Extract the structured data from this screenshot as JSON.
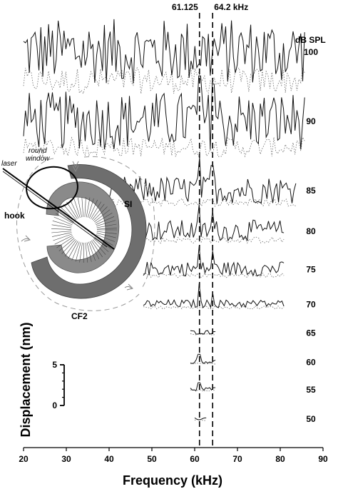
{
  "chart_data": {
    "type": "line",
    "xlabel": "Frequency (kHz)",
    "ylabel": "Displacement (nm)",
    "xlim": [
      20,
      90
    ],
    "x_ticks": [
      20,
      30,
      40,
      50,
      60,
      70,
      80,
      90
    ],
    "level_unit_label": "dB SPL",
    "markers": [
      {
        "x": 61.125,
        "label": "61.125"
      },
      {
        "x": 64.2,
        "label": "64.2 kHz"
      }
    ],
    "scale_bar": {
      "labels": [
        "5",
        "0"
      ],
      "values_nm": [
        5,
        0
      ]
    },
    "traces": [
      {
        "level": "100",
        "x_range": [
          20,
          86
        ],
        "baseline_nm": 43.5,
        "noise_nm": 4.0,
        "noise_dotted_nm": 1.6,
        "peaks": []
      },
      {
        "level": "90",
        "x_range": [
          20,
          86
        ],
        "baseline_nm": 35.0,
        "noise_nm": 3.6,
        "noise_dotted_nm": 1.2,
        "peaks": [
          {
            "x": 61.125,
            "nm": 5.5
          },
          {
            "x": 64.2,
            "nm": 4.5
          }
        ]
      },
      {
        "level": "85",
        "x_range": [
          40,
          84
        ],
        "baseline_nm": 26.5,
        "noise_nm": 1.7,
        "noise_dotted_nm": 0.5,
        "peaks": [
          {
            "x": 61.125,
            "nm": 4.0
          },
          {
            "x": 64.2,
            "nm": 3.0
          }
        ]
      },
      {
        "level": "80",
        "x_range": [
          48,
          81
        ],
        "baseline_nm": 21.5,
        "noise_nm": 1.3,
        "noise_dotted_nm": 0.4,
        "peaks": [
          {
            "x": 61.125,
            "nm": 3.2
          },
          {
            "x": 64.2,
            "nm": 2.4
          }
        ]
      },
      {
        "level": "75",
        "x_range": [
          48,
          81
        ],
        "baseline_nm": 16.8,
        "noise_nm": 0.9,
        "noise_dotted_nm": 0.3,
        "peaks": [
          {
            "x": 61.125,
            "nm": 2.8
          },
          {
            "x": 64.2,
            "nm": 2.2
          }
        ]
      },
      {
        "level": "70",
        "x_range": [
          48,
          81
        ],
        "baseline_nm": 12.5,
        "noise_nm": 0.5,
        "noise_dotted_nm": 0.2,
        "peaks": [
          {
            "x": 61.125,
            "nm": 2.5
          },
          {
            "x": 64.2,
            "nm": 1.4
          }
        ]
      },
      {
        "level": "65",
        "x_range": [
          59,
          65
        ],
        "baseline_nm": 9.0,
        "noise_nm": 0.25,
        "noise_dotted_nm": 0.1,
        "peaks": []
      },
      {
        "level": "60",
        "x_range": [
          59,
          65
        ],
        "baseline_nm": 5.4,
        "noise_nm": 0.25,
        "noise_dotted_nm": 0.1,
        "peaks": [
          {
            "x": 61.125,
            "nm": 0.9
          }
        ]
      },
      {
        "level": "55",
        "x_range": [
          59,
          65
        ],
        "baseline_nm": 2.0,
        "noise_nm": 0.2,
        "noise_dotted_nm": 0.1,
        "peaks": [
          {
            "x": 61.125,
            "nm": 0.8
          }
        ]
      },
      {
        "level": "50",
        "x_range": [
          60,
          63
        ],
        "baseline_nm": -1.6,
        "noise_nm": 0.2,
        "noise_dotted_nm": 0.1,
        "peaks": []
      }
    ],
    "inset": {
      "labels": {
        "laser": "laser",
        "round_window": [
          "round",
          "window"
        ],
        "hook": "hook",
        "si": "SI",
        "cf2": "CF2"
      }
    }
  }
}
